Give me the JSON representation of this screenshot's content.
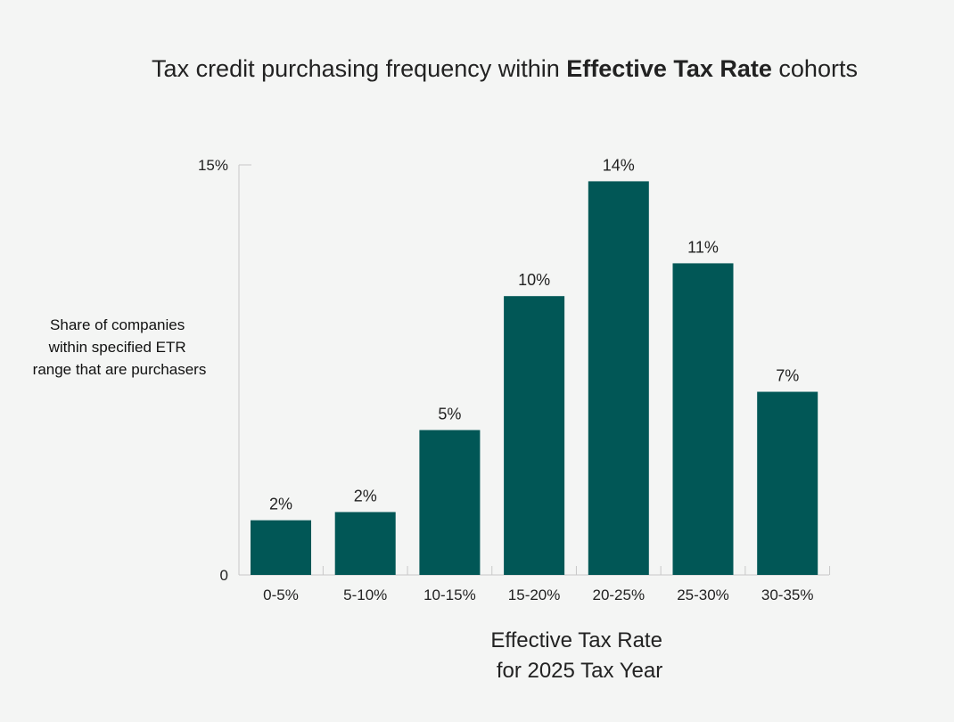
{
  "chart_data": {
    "type": "bar",
    "title_parts": {
      "prefix": "Tax credit purchasing frequency within ",
      "emphasis": "Effective Tax Rate",
      "suffix": " cohorts"
    },
    "ylabel_lines": [
      "Share of companies",
      "within specified ETR",
      "range that are purchasers"
    ],
    "xlabel_lines": [
      "Effective Tax Rate",
      "for 2025 Tax Year"
    ],
    "categories": [
      "0-5%",
      "5-10%",
      "10-15%",
      "15-20%",
      "20-25%",
      "25-30%",
      "30-35%"
    ],
    "values": [
      2.0,
      2.3,
      5.3,
      10.2,
      14.4,
      11.4,
      6.7
    ],
    "data_labels": [
      "2%",
      "2%",
      "5%",
      "10%",
      "14%",
      "11%",
      "7%"
    ],
    "ylim": [
      0,
      15
    ],
    "y_tick_labels": [
      "0",
      "15%"
    ],
    "y_tick_values": [
      0,
      15
    ],
    "bar_color": "#015756",
    "axis_color": "#c8c8c8"
  }
}
